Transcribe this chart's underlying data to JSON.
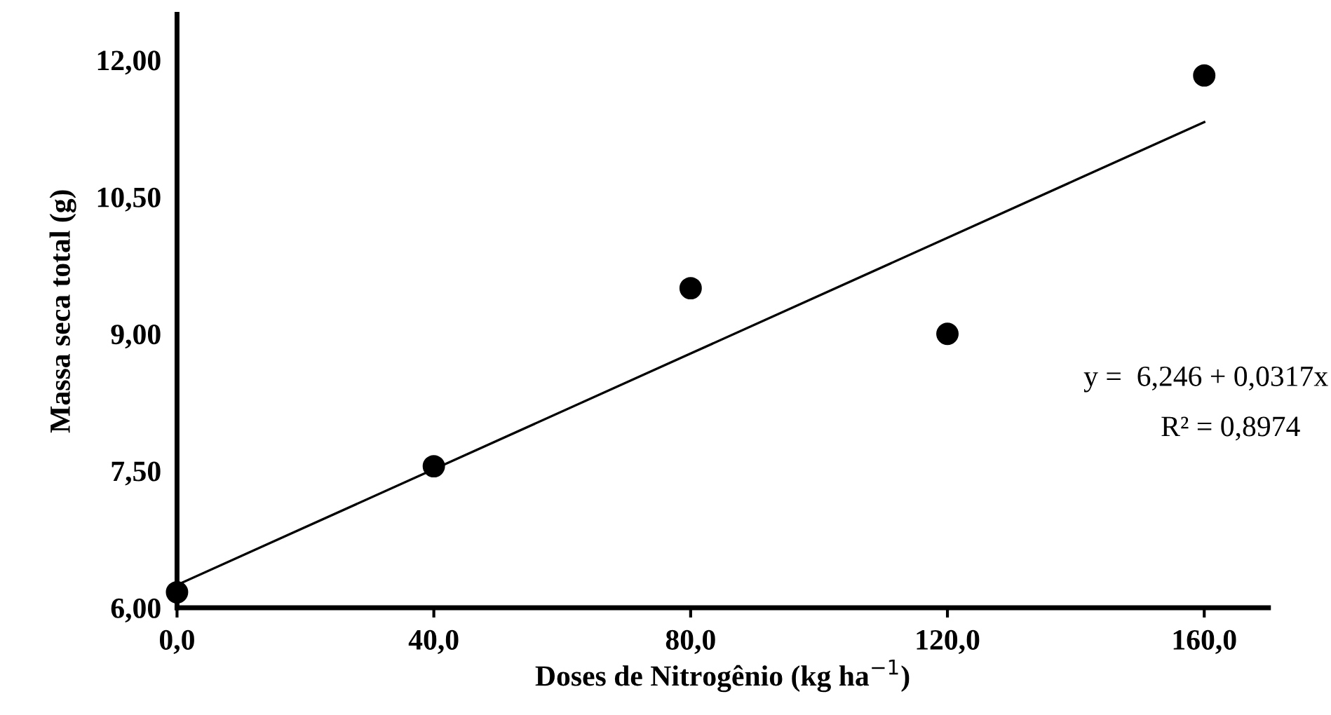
{
  "chart_data": {
    "type": "scatter",
    "xlabel": "Doses de Nitrogênio (kg ha$^{−1}$)",
    "ylabel": "Massa seca total (g)",
    "series": [
      {
        "color": "#000000",
        "x": [
          0,
          40,
          80,
          120,
          160
        ],
        "values": [
          6.17,
          7.55,
          9.5,
          9.0,
          11.83
        ],
        "marker": "circle"
      },
      {
        "type": "line",
        "color": "#000000",
        "x": [
          0,
          160
        ],
        "values": [
          6.25,
          11.32
        ],
        "marker": "none"
      }
    ],
    "xlim": [
      0,
      170
    ],
    "ylim": [
      6,
      12.5
    ],
    "xticks": [
      {
        "value": 0,
        "label": "0,0"
      },
      {
        "value": 40,
        "label": "40,0"
      },
      {
        "value": 80,
        "label": "80,0"
      },
      {
        "value": 120,
        "label": "120,0"
      },
      {
        "value": 160,
        "label": "160,0"
      }
    ],
    "yticks": [
      {
        "value": 6,
        "label": "6,00"
      },
      {
        "value": 7.5,
        "label": "7,50"
      },
      {
        "value": 9,
        "label": "9,00"
      },
      {
        "value": 10.5,
        "label": "10,50"
      },
      {
        "value": 12,
        "label": "12,00"
      }
    ],
    "annotations": [
      "y =  6,246 + 0,0317x",
      "R² = 0,8974"
    ],
    "grid": false,
    "legend": false
  }
}
